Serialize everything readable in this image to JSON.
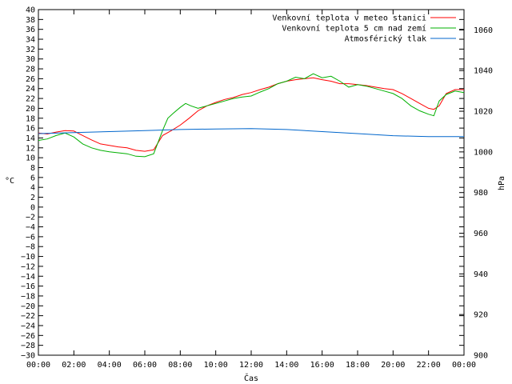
{
  "chart_data": {
    "type": "line",
    "title": "",
    "xlabel": "Čas",
    "ylabel": "°C",
    "y2label": "hPa",
    "xlim": [
      0,
      24
    ],
    "ylim": [
      -30,
      40
    ],
    "y2lim": [
      900,
      1070
    ],
    "x_ticks": [
      "00:00",
      "02:00",
      "04:00",
      "06:00",
      "08:00",
      "10:00",
      "12:00",
      "14:00",
      "16:00",
      "18:00",
      "20:00",
      "22:00",
      "00:00"
    ],
    "y_ticks": [
      40,
      38,
      36,
      34,
      32,
      30,
      28,
      26,
      24,
      22,
      20,
      18,
      16,
      14,
      12,
      10,
      8,
      6,
      4,
      2,
      0,
      -2,
      -4,
      -6,
      -8,
      -10,
      -12,
      -14,
      -16,
      -18,
      -20,
      -22,
      -24,
      -26,
      -28,
      -30
    ],
    "y2_ticks": [
      1060,
      1040,
      1020,
      1000,
      980,
      960,
      940,
      920,
      900
    ],
    "legend_position": "top-right",
    "grid": false,
    "series": [
      {
        "name": "Venkovní teplota v meteo stanici",
        "axis": "y",
        "color": "#ff0000",
        "x": [
          0,
          0.5,
          1,
          1.5,
          2,
          2.5,
          3,
          3.5,
          4,
          4.5,
          5,
          5.5,
          6,
          6.5,
          7,
          7.5,
          8,
          8.5,
          9,
          9.5,
          10,
          10.5,
          11,
          11.5,
          12,
          12.5,
          13,
          13.5,
          14,
          14.5,
          15,
          15.5,
          16,
          16.5,
          17,
          17.5,
          18,
          18.5,
          19,
          19.5,
          20,
          20.5,
          21,
          21.5,
          22,
          22.3,
          22.6,
          23,
          23.5,
          24
        ],
        "y": [
          15,
          14.8,
          15.2,
          15.5,
          15.4,
          14.5,
          13.6,
          12.8,
          12.5,
          12.2,
          12,
          11.5,
          11.3,
          11.6,
          14.5,
          15.5,
          16.6,
          18,
          19.5,
          20.5,
          21.2,
          21.8,
          22.2,
          22.8,
          23.2,
          23.8,
          24.3,
          25,
          25.5,
          25.8,
          26,
          26.2,
          25.8,
          25.5,
          25,
          25,
          24.8,
          24.6,
          24.3,
          24,
          23.8,
          23,
          22,
          21,
          20,
          19.8,
          20.5,
          23,
          23.8,
          23.8
        ]
      },
      {
        "name": "Venkovní teplota 5 cm nad zemí",
        "axis": "y",
        "color": "#00b000",
        "x": [
          0,
          0.5,
          1,
          1.5,
          2,
          2.5,
          3,
          3.5,
          4,
          4.5,
          5,
          5.5,
          6,
          6.5,
          7,
          7.3,
          7.6,
          8,
          8.3,
          8.6,
          9,
          9.5,
          10,
          10.5,
          11,
          11.5,
          12,
          12.5,
          13,
          13.5,
          14,
          14.5,
          15,
          15.5,
          16,
          16.5,
          17,
          17.5,
          18,
          18.5,
          19,
          19.5,
          20,
          20.5,
          21,
          21.5,
          22,
          22.3,
          22.6,
          23,
          23.5,
          24
        ],
        "y": [
          13.5,
          13.8,
          14.5,
          15,
          14.2,
          12.8,
          12,
          11.5,
          11.2,
          11,
          10.8,
          10.3,
          10.2,
          10.8,
          15.5,
          18,
          19,
          20.2,
          21,
          20.5,
          20,
          20.5,
          21,
          21.5,
          22,
          22.3,
          22.5,
          23.3,
          24,
          25,
          25.5,
          26.3,
          26,
          27,
          26.2,
          26.5,
          25.5,
          24.3,
          24.8,
          24.5,
          24,
          23.5,
          23,
          22,
          20.5,
          19.5,
          18.8,
          18.5,
          21.5,
          22.8,
          23.5,
          23.2
        ]
      },
      {
        "name": "Atmosférický tlak",
        "axis": "y2",
        "color": "#0066cc",
        "x": [
          0,
          2,
          4,
          6,
          8,
          10,
          12,
          14,
          16,
          18,
          20,
          22,
          24
        ],
        "y": [
          1009,
          1009.5,
          1010,
          1010.5,
          1011,
          1011.3,
          1011.5,
          1011,
          1010,
          1009,
          1008,
          1007.5,
          1007.5
        ]
      }
    ]
  }
}
